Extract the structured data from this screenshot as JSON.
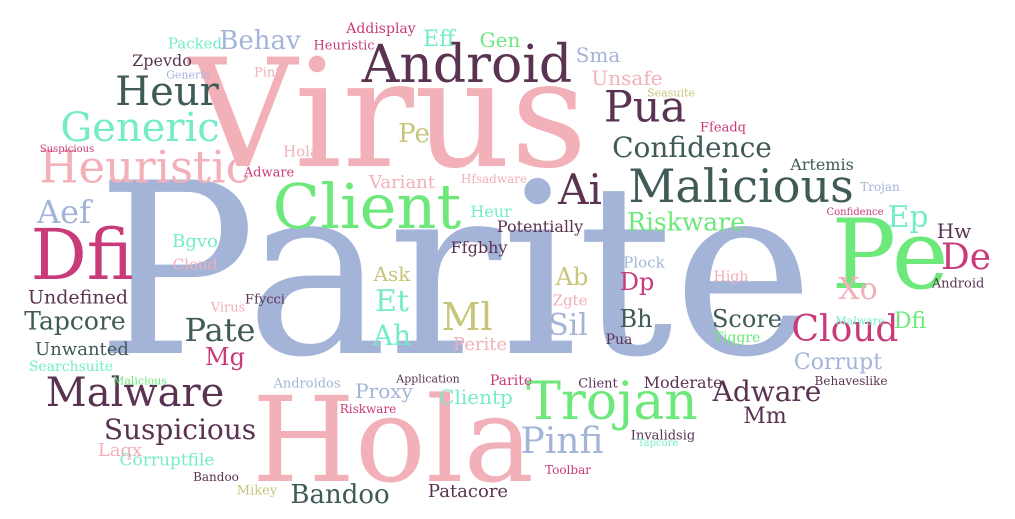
{
  "palette": {
    "pink": "#f2b0b8",
    "blue": "#a3b4d8",
    "green": "#6de87a",
    "mint": "#74ecc8",
    "olive": "#c8c57a",
    "magenta": "#c93a7a",
    "plum": "#5a3352",
    "slate": "#3f5a57"
  },
  "words": [
    {
      "text": "Parite",
      "color": "blue"
    },
    {
      "text": "Virus",
      "color": "pink"
    },
    {
      "text": "Hola",
      "color": "pink"
    },
    {
      "text": "Pe",
      "color": "green"
    },
    {
      "text": "Client",
      "color": "green"
    },
    {
      "text": "Android",
      "color": "plum"
    },
    {
      "text": "Malicious",
      "color": "slate"
    },
    {
      "text": "Trojan",
      "color": "green"
    },
    {
      "text": "Dfi",
      "color": "magenta"
    },
    {
      "text": "Heuristic",
      "color": "pink"
    },
    {
      "text": "Generic",
      "color": "mint"
    },
    {
      "text": "Heur",
      "color": "slate"
    },
    {
      "text": "Malware",
      "color": "plum"
    },
    {
      "text": "Pua",
      "color": "plum"
    },
    {
      "text": "Ai",
      "color": "plum"
    },
    {
      "text": "Confidence",
      "color": "slate"
    },
    {
      "text": "Cloud",
      "color": "magenta"
    },
    {
      "text": "Pinfi",
      "color": "blue"
    },
    {
      "text": "Suspicious",
      "color": "plum"
    },
    {
      "text": "Pate",
      "color": "slate"
    },
    {
      "text": "Ml",
      "color": "olive"
    },
    {
      "text": "Riskware",
      "color": "green"
    },
    {
      "text": "Adware",
      "color": "plum"
    },
    {
      "text": "Bandoo",
      "color": "slate"
    },
    {
      "text": "Tapcore",
      "color": "slate"
    },
    {
      "text": "Aef",
      "color": "blue"
    },
    {
      "text": "De",
      "color": "magenta"
    },
    {
      "text": "Ep",
      "color": "mint"
    },
    {
      "text": "Xo",
      "color": "pink"
    },
    {
      "text": "Et",
      "color": "mint"
    },
    {
      "text": "Ah",
      "color": "mint"
    },
    {
      "text": "Sil",
      "color": "blue"
    },
    {
      "text": "Bh",
      "color": "slate"
    },
    {
      "text": "Score",
      "color": "slate"
    },
    {
      "text": "Corrupt",
      "color": "blue"
    },
    {
      "text": "Behav",
      "color": "blue"
    },
    {
      "text": "Pe",
      "color": "olive"
    },
    {
      "text": "Hw",
      "color": "plum"
    },
    {
      "text": "Dfi",
      "color": "green"
    },
    {
      "text": "Mg",
      "color": "magenta"
    },
    {
      "text": "Dp",
      "color": "magenta"
    },
    {
      "text": "Ab",
      "color": "olive"
    },
    {
      "text": "Mm",
      "color": "plum"
    },
    {
      "text": "Undefined",
      "color": "plum"
    },
    {
      "text": "Unwanted",
      "color": "slate"
    },
    {
      "text": "Proxy",
      "color": "blue"
    },
    {
      "text": "Clientp",
      "color": "mint"
    },
    {
      "text": "Patacore",
      "color": "plum"
    },
    {
      "text": "Corruptfile",
      "color": "mint"
    },
    {
      "text": "Variant",
      "color": "pink"
    },
    {
      "text": "Heur",
      "color": "mint"
    },
    {
      "text": "Potentially",
      "color": "plum"
    },
    {
      "text": "Bgvo",
      "color": "mint"
    },
    {
      "text": "Ask",
      "color": "olive"
    },
    {
      "text": "Ffgbhy",
      "color": "plum"
    },
    {
      "text": "Zpevdo",
      "color": "plum"
    },
    {
      "text": "Unsafe",
      "color": "pink"
    },
    {
      "text": "Eff",
      "color": "mint"
    },
    {
      "text": "Gen",
      "color": "green"
    },
    {
      "text": "Sma",
      "color": "blue"
    },
    {
      "text": "Perite",
      "color": "pink"
    },
    {
      "text": "Artemis",
      "color": "slate"
    },
    {
      "text": "Laqx",
      "color": "pink"
    },
    {
      "text": "Moderate",
      "color": "plum"
    },
    {
      "text": "Packed",
      "color": "mint"
    },
    {
      "text": "Heuristic",
      "color": "magenta"
    },
    {
      "text": "Addisplay",
      "color": "magenta"
    },
    {
      "text": "Hola",
      "color": "pink"
    },
    {
      "text": "Adware",
      "color": "magenta"
    },
    {
      "text": "Hfsadware",
      "color": "pink"
    },
    {
      "text": "Cloud",
      "color": "pink"
    },
    {
      "text": "Ffycci",
      "color": "plum"
    },
    {
      "text": "Zgte",
      "color": "pink"
    },
    {
      "text": "Plock",
      "color": "blue"
    },
    {
      "text": "High",
      "color": "pink"
    },
    {
      "text": "Android",
      "color": "plum"
    },
    {
      "text": "Tiggre",
      "color": "green"
    },
    {
      "text": "Malware",
      "color": "mint"
    },
    {
      "text": "Behaveslike",
      "color": "plum"
    },
    {
      "text": "Invalidsig",
      "color": "plum"
    },
    {
      "text": "Client",
      "color": "plum"
    },
    {
      "text": "Parite",
      "color": "magenta"
    },
    {
      "text": "Androidos",
      "color": "blue"
    },
    {
      "text": "Searchsuite",
      "color": "mint"
    },
    {
      "text": "Malicious",
      "color": "green"
    },
    {
      "text": "Pinfi",
      "color": "pink"
    },
    {
      "text": "Generic",
      "color": "blue"
    },
    {
      "text": "Seasuite",
      "color": "olive"
    },
    {
      "text": "Ffeadq",
      "color": "magenta"
    },
    {
      "text": "Suspicious",
      "color": "magenta"
    },
    {
      "text": "Trojan",
      "color": "blue"
    },
    {
      "text": "Confidence",
      "color": "magenta"
    },
    {
      "text": "Virus",
      "color": "pink"
    },
    {
      "text": "Application",
      "color": "plum"
    },
    {
      "text": "Riskware",
      "color": "magenta"
    },
    {
      "text": "Toolbar",
      "color": "magenta"
    },
    {
      "text": "Tapcore",
      "color": "mint"
    },
    {
      "text": "Bandoo",
      "color": "plum"
    },
    {
      "text": "Mikey",
      "color": "olive"
    },
    {
      "text": "Pua",
      "color": "plum"
    }
  ]
}
